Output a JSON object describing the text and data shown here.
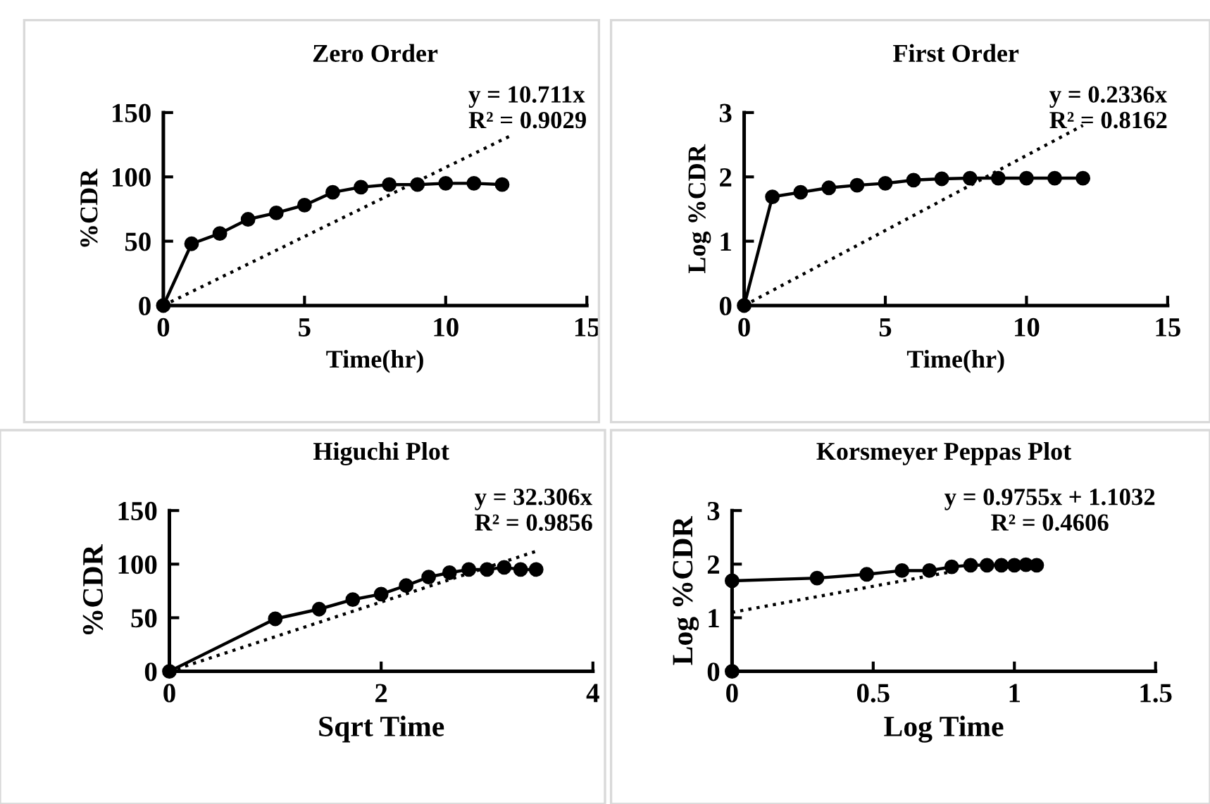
{
  "chart_data": [
    {
      "type": "line",
      "title": "Zero Order",
      "xlabel": "Time(hr)",
      "ylabel": "%CDR",
      "annotations": [
        "y = 10.711x",
        "R² = 0.9029"
      ],
      "xlim": [
        0,
        15
      ],
      "xticks": [
        0,
        5,
        10,
        15
      ],
      "ylim": [
        0,
        150
      ],
      "yticks": [
        0,
        50,
        100,
        150
      ],
      "grid": false,
      "legend": false,
      "series": [
        {
          "color": "#000000",
          "marker": "circle",
          "line_style": "solid",
          "x": [
            0,
            1,
            2,
            3,
            4,
            5,
            6,
            7,
            8,
            9,
            10,
            11,
            12
          ],
          "values": [
            0,
            48,
            56,
            67,
            72,
            78,
            88,
            92,
            94,
            94,
            95,
            95,
            94
          ]
        },
        {
          "type": "line",
          "color": "#000000",
          "marker": "none",
          "line_style": "dotted",
          "x": [
            0,
            12.3
          ],
          "values": [
            0,
            132
          ]
        }
      ]
    },
    {
      "type": "line",
      "title": "First Order",
      "xlabel": "Time(hr)",
      "ylabel": "Log %CDR",
      "annotations": [
        "y = 0.2336x",
        "R² = 0.8162"
      ],
      "xlim": [
        0,
        15
      ],
      "xticks": [
        0,
        5,
        10,
        15
      ],
      "ylim": [
        0,
        3
      ],
      "yticks": [
        0,
        1,
        2,
        3
      ],
      "grid": false,
      "legend": false,
      "series": [
        {
          "color": "#000000",
          "marker": "circle",
          "line_style": "solid",
          "x": [
            0,
            1,
            2,
            3,
            4,
            5,
            6,
            7,
            8,
            9,
            10,
            11,
            12
          ],
          "values": [
            0,
            1.69,
            1.76,
            1.83,
            1.87,
            1.9,
            1.95,
            1.97,
            1.98,
            1.98,
            1.98,
            1.98,
            1.98
          ]
        },
        {
          "type": "line",
          "color": "#000000",
          "marker": "none",
          "line_style": "dotted",
          "x": [
            0,
            12
          ],
          "values": [
            0,
            2.8
          ]
        }
      ]
    },
    {
      "type": "line",
      "title": "Higuchi Plot",
      "xlabel": "Sqrt Time",
      "ylabel": "%CDR",
      "annotations": [
        "y = 32.306x",
        "R² = 0.9856"
      ],
      "xlim": [
        0,
        4
      ],
      "xticks": [
        0,
        2,
        4
      ],
      "ylim": [
        0,
        150
      ],
      "yticks": [
        0,
        50,
        100,
        150
      ],
      "grid": false,
      "legend": false,
      "series": [
        {
          "color": "#000000",
          "marker": "circle",
          "line_style": "solid",
          "x": [
            0,
            1,
            1.414,
            1.732,
            2,
            2.236,
            2.449,
            2.646,
            2.828,
            3,
            3.162,
            3.317,
            3.464
          ],
          "values": [
            0,
            49,
            58,
            67,
            72,
            80,
            88,
            92,
            95,
            95,
            97,
            95,
            95
          ]
        },
        {
          "type": "line",
          "color": "#000000",
          "marker": "none",
          "line_style": "dotted",
          "x": [
            0,
            3.464
          ],
          "values": [
            0,
            112
          ]
        }
      ]
    },
    {
      "type": "line",
      "title": "Korsmeyer Peppas Plot",
      "xlabel": "Log Time",
      "ylabel": "Log %CDR",
      "annotations": [
        "y = 0.9755x + 1.1032",
        "R² = 0.4606"
      ],
      "xlim": [
        0,
        1.5
      ],
      "xticks": [
        0,
        0.5,
        1,
        1.5
      ],
      "ylim": [
        0,
        3
      ],
      "yticks": [
        0,
        1,
        2,
        3
      ],
      "grid": false,
      "legend": false,
      "series": [
        {
          "color": "#000000",
          "marker": "circle",
          "line_style": "solid",
          "x": [
            0,
            0,
            0.301,
            0.477,
            0.602,
            0.699,
            0.778,
            0.845,
            0.903,
            0.954,
            1,
            1.041,
            1.079
          ],
          "values": [
            0,
            1.69,
            1.74,
            1.81,
            1.88,
            1.88,
            1.95,
            1.98,
            1.98,
            1.98,
            1.98,
            1.99,
            1.98
          ]
        },
        {
          "type": "line",
          "color": "#000000",
          "marker": "none",
          "line_style": "dotted",
          "x": [
            0,
            0.78
          ],
          "values": [
            1.1,
            1.86
          ]
        }
      ]
    }
  ]
}
